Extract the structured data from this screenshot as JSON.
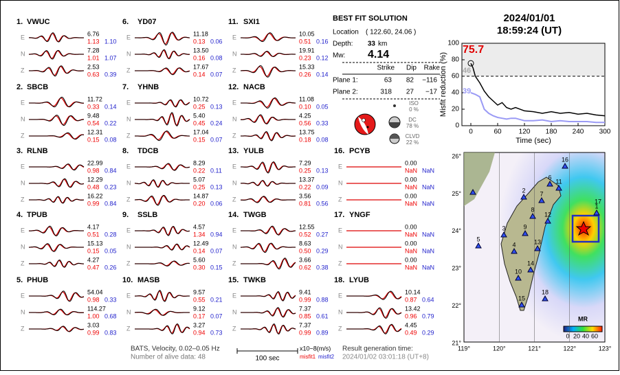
{
  "stations": [
    {
      "number": "1.",
      "name": "VWUC",
      "components": [
        {
          "comp": "E",
          "amp": "6.76",
          "misfit1": "1.13",
          "misfit2": "1.10"
        },
        {
          "comp": "N",
          "amp": "7.28",
          "misfit1": "1.01",
          "misfit2": "1.07"
        },
        {
          "comp": "Z",
          "amp": "2.53",
          "misfit1": "0.63",
          "misfit2": "0.39"
        }
      ]
    },
    {
      "number": "2.",
      "name": "SBCB",
      "components": [
        {
          "comp": "E",
          "amp": "11.72",
          "misfit1": "0.33",
          "misfit2": "0.14"
        },
        {
          "comp": "N",
          "amp": "9.48",
          "misfit1": "0.54",
          "misfit2": "0.22"
        },
        {
          "comp": "Z",
          "amp": "12.31",
          "misfit1": "0.15",
          "misfit2": "0.08"
        }
      ]
    },
    {
      "number": "3.",
      "name": "RLNB",
      "components": [
        {
          "comp": "E",
          "amp": "22.99",
          "misfit1": "0.98",
          "misfit2": "0.84"
        },
        {
          "comp": "N",
          "amp": "12.29",
          "misfit1": "0.48",
          "misfit2": "0.23"
        },
        {
          "comp": "Z",
          "amp": "16.22",
          "misfit1": "0.99",
          "misfit2": "0.84"
        }
      ]
    },
    {
      "number": "4.",
      "name": "TPUB",
      "components": [
        {
          "comp": "E",
          "amp": "4.17",
          "misfit1": "0.51",
          "misfit2": "0.28"
        },
        {
          "comp": "N",
          "amp": "15.13",
          "misfit1": "0.15",
          "misfit2": "0.05"
        },
        {
          "comp": "Z",
          "amp": "4.27",
          "misfit1": "0.47",
          "misfit2": "0.26"
        }
      ]
    },
    {
      "number": "5.",
      "name": "PHUB",
      "components": [
        {
          "comp": "E",
          "amp": "54.04",
          "misfit1": "0.98",
          "misfit2": "0.33"
        },
        {
          "comp": "N",
          "amp": "114.27",
          "misfit1": "1.00",
          "misfit2": "0.68"
        },
        {
          "comp": "Z",
          "amp": "3.03",
          "misfit1": "0.99",
          "misfit2": "0.83"
        }
      ]
    },
    {
      "number": "6.",
      "name": "YD07",
      "components": [
        {
          "comp": "E",
          "amp": "11.18",
          "misfit1": "0.13",
          "misfit2": "0.06"
        },
        {
          "comp": "N",
          "amp": "13.50",
          "misfit1": "0.16",
          "misfit2": "0.08"
        },
        {
          "comp": "Z",
          "amp": "17.67",
          "misfit1": "0.14",
          "misfit2": "0.07"
        }
      ]
    },
    {
      "number": "7.",
      "name": "YHNB",
      "components": [
        {
          "comp": "E",
          "amp": "10.72",
          "misfit1": "0.25",
          "misfit2": "0.13"
        },
        {
          "comp": "N",
          "amp": "5.40",
          "misfit1": "0.45",
          "misfit2": "0.24"
        },
        {
          "comp": "Z",
          "amp": "17.04",
          "misfit1": "0.15",
          "misfit2": "0.07"
        }
      ]
    },
    {
      "number": "8.",
      "name": "TDCB",
      "components": [
        {
          "comp": "E",
          "amp": "8.29",
          "misfit1": "0.22",
          "misfit2": "0.11"
        },
        {
          "comp": "N",
          "amp": "5.07",
          "misfit1": "0.25",
          "misfit2": "0.13"
        },
        {
          "comp": "Z",
          "amp": "14.87",
          "misfit1": "0.20",
          "misfit2": "0.06"
        }
      ]
    },
    {
      "number": "9.",
      "name": "SSLB",
      "components": [
        {
          "comp": "E",
          "amp": "4.57",
          "misfit1": "1.34",
          "misfit2": "0.94"
        },
        {
          "comp": "N",
          "amp": "12.49",
          "misfit1": "0.14",
          "misfit2": "0.07"
        },
        {
          "comp": "Z",
          "amp": "5.60",
          "misfit1": "0.30",
          "misfit2": "0.15"
        }
      ]
    },
    {
      "number": "10.",
      "name": "MASB",
      "components": [
        {
          "comp": "E",
          "amp": "9.57",
          "misfit1": "0.55",
          "misfit2": "0.21"
        },
        {
          "comp": "N",
          "amp": "9.12",
          "misfit1": "0.17",
          "misfit2": "0.07"
        },
        {
          "comp": "Z",
          "amp": "3.27",
          "misfit1": "0.94",
          "misfit2": "0.73"
        }
      ]
    },
    {
      "number": "11.",
      "name": "SXI1",
      "components": [
        {
          "comp": "E",
          "amp": "10.05",
          "misfit1": "0.51",
          "misfit2": "0.16"
        },
        {
          "comp": "N",
          "amp": "19.91",
          "misfit1": "0.23",
          "misfit2": "0.12"
        },
        {
          "comp": "Z",
          "amp": "15.33",
          "misfit1": "0.26",
          "misfit2": "0.14"
        }
      ]
    },
    {
      "number": "12.",
      "name": "NACB",
      "components": [
        {
          "comp": "E",
          "amp": "11.08",
          "misfit1": "0.10",
          "misfit2": "0.05"
        },
        {
          "comp": "N",
          "amp": "4.25",
          "misfit1": "0.56",
          "misfit2": "0.33"
        },
        {
          "comp": "Z",
          "amp": "13.75",
          "misfit1": "0.18",
          "misfit2": "0.08"
        }
      ]
    },
    {
      "number": "13.",
      "name": "YULB",
      "components": [
        {
          "comp": "E",
          "amp": "7.29",
          "misfit1": "0.25",
          "misfit2": "0.13"
        },
        {
          "comp": "N",
          "amp": "13.37",
          "misfit1": "0.22",
          "misfit2": "0.09"
        },
        {
          "comp": "Z",
          "amp": "3.56",
          "misfit1": "0.81",
          "misfit2": "0.56"
        }
      ]
    },
    {
      "number": "14.",
      "name": "TWGB",
      "components": [
        {
          "comp": "E",
          "amp": "12.55",
          "misfit1": "0.52",
          "misfit2": "0.27"
        },
        {
          "comp": "N",
          "amp": "8.63",
          "misfit1": "0.50",
          "misfit2": "0.29"
        },
        {
          "comp": "Z",
          "amp": "3.66",
          "misfit1": "0.62",
          "misfit2": "0.38"
        }
      ]
    },
    {
      "number": "15.",
      "name": "TWKB",
      "components": [
        {
          "comp": "E",
          "amp": "9.41",
          "misfit1": "0.99",
          "misfit2": "0.88"
        },
        {
          "comp": "N",
          "amp": "7.37",
          "misfit1": "0.85",
          "misfit2": "0.61"
        },
        {
          "comp": "Z",
          "amp": "7.37",
          "misfit1": "0.99",
          "misfit2": "0.89"
        }
      ]
    },
    {
      "number": "16.",
      "name": "PCYB",
      "components": [
        {
          "comp": "E",
          "amp": "0.00",
          "misfit1": "NaN",
          "misfit2": "NaN"
        },
        {
          "comp": "N",
          "amp": "0.00",
          "misfit1": "NaN",
          "misfit2": "NaN"
        },
        {
          "comp": "Z",
          "amp": "0.00",
          "misfit1": "NaN",
          "misfit2": "NaN"
        }
      ]
    },
    {
      "number": "17.",
      "name": "YNGF",
      "components": [
        {
          "comp": "E",
          "amp": "0.00",
          "misfit1": "NaN",
          "misfit2": "NaN"
        },
        {
          "comp": "N",
          "amp": "0.00",
          "misfit1": "NaN",
          "misfit2": "NaN"
        },
        {
          "comp": "Z",
          "amp": "0.00",
          "misfit1": "NaN",
          "misfit2": "NaN"
        }
      ]
    },
    {
      "number": "18.",
      "name": "LYUB",
      "components": [
        {
          "comp": "E",
          "amp": "10.14",
          "misfit1": "0.87",
          "misfit2": "0.64"
        },
        {
          "comp": "N",
          "amp": "13.42",
          "misfit1": "0.96",
          "misfit2": "0.79"
        },
        {
          "comp": "Z",
          "amp": "4.45",
          "misfit1": "0.49",
          "misfit2": "0.29"
        }
      ]
    }
  ],
  "solution": {
    "title": "BEST FIT SOLUTION",
    "location_label": "Location",
    "location": "( 122.60, 24.06 )",
    "depth_label": "Depth:",
    "depth": "33",
    "depth_unit": "km",
    "mw_label": "Mw:",
    "mw": "4.14",
    "table": {
      "headers": [
        "Strike",
        "Dip",
        "Rake"
      ],
      "rows": [
        {
          "label": "Plane 1:",
          "values": [
            "63",
            "82",
            "−116"
          ]
        },
        {
          "label": "Plane 2:",
          "values": [
            "318",
            "27",
            "−17"
          ]
        }
      ]
    },
    "iso_label": "ISO",
    "iso": "0 %",
    "dc_label": "DC",
    "dc": "78 %",
    "clvd_label": "CLVD",
    "clvd": "22 %"
  },
  "header": {
    "date": "2024/01/01",
    "time": "18:59:24  (UT)"
  },
  "footer": {
    "filter": "BATS, Velocity, 0.02–0.05 Hz",
    "alive": "Number of alive data: 48",
    "scale": "100 sec",
    "units": "x10−8(m/s)",
    "misfit1": "misfit1",
    "misfit2": "misfit2",
    "gen_label": "Result generation time:",
    "gen_time": "2024/01/02 03:01:18 (UT+8)"
  },
  "chart_data": {
    "type": "line",
    "x_label": "Time (sec)",
    "y_label": "Misfit reduction (%)",
    "x": [
      0,
      5,
      10,
      20,
      30,
      40,
      50,
      60,
      70,
      80,
      90,
      100,
      120,
      140,
      160,
      180,
      200,
      220,
      240,
      260,
      280,
      300
    ],
    "series": [
      {
        "color": "#000000",
        "values": [
          75.7,
          70,
          60,
          52,
          42,
          35,
          30,
          25,
          28,
          22,
          20,
          22,
          18,
          17,
          15,
          17,
          15,
          16,
          14,
          15,
          13,
          12
        ]
      },
      {
        "color": "#9a9af5",
        "values": [
          40,
          39,
          38,
          35,
          20,
          15,
          12,
          10,
          9,
          8,
          9,
          9,
          6,
          6,
          7,
          5,
          6,
          5,
          5,
          5,
          4,
          4
        ]
      }
    ],
    "xlim": [
      -20,
      300
    ],
    "ylim": [
      0,
      100
    ],
    "xticks": [
      0,
      60,
      120,
      180,
      240,
      300
    ],
    "yticks": [
      0,
      20,
      40,
      60,
      80,
      100
    ],
    "reference_line": 60,
    "annotations": [
      {
        "text": "75.7",
        "color": "#e00000"
      },
      {
        "text": "46",
        "color": "#aaaaaa"
      },
      {
        "text": "39",
        "color": "#9a9af5"
      }
    ]
  },
  "map": {
    "lat_labels": [
      "26°",
      "25°",
      "24°",
      "23°",
      "22°",
      "21°"
    ],
    "lon_labels": [
      "119°",
      "120°",
      "121°",
      "122°",
      "123°"
    ],
    "station_labels": [
      "1",
      "2",
      "3",
      "4",
      "5",
      "6",
      "7",
      "8",
      "9",
      "10",
      "11",
      "12",
      "13",
      "14",
      "15",
      "16",
      "17",
      "18"
    ],
    "colorbar_title": "MR",
    "colorbar_ticks": [
      "0",
      "20",
      "40",
      "60"
    ]
  }
}
